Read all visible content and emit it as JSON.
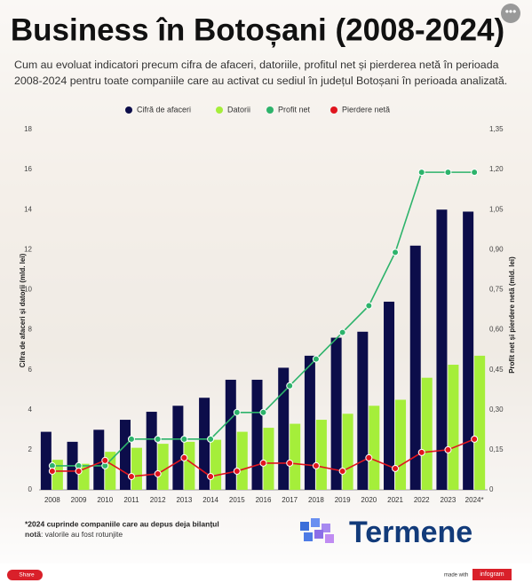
{
  "chart_data": {
    "type": "bar-line",
    "title": "Business în Botoșani (2008-2024)",
    "subtitle": "Cum au evoluat indicatori precum cifra de afaceri, datoriile, profitul net și pierderea netă în perioada 2008-2024 pentru toate companiile care au activat cu sediul în județul Botoșani în perioada analizată.",
    "categories": [
      "2008",
      "2009",
      "2010",
      "2011",
      "2012",
      "2013",
      "2014",
      "2015",
      "2016",
      "2017",
      "2018",
      "2019",
      "2020",
      "2021",
      "2022",
      "2023",
      "2024*"
    ],
    "series": [
      {
        "name": "Cifră de afaceri",
        "color": "#0c0d4a",
        "kind": "bar",
        "values": [
          2.9,
          2.4,
          3.0,
          3.5,
          3.9,
          4.2,
          4.6,
          5.5,
          5.5,
          6.1,
          6.7,
          7.6,
          7.9,
          9.4,
          12.2,
          14.0,
          13.9
        ]
      },
      {
        "name": "Datorii",
        "color": "#a5ee3a",
        "kind": "bar",
        "values": [
          1.5,
          1.3,
          1.9,
          2.1,
          2.3,
          2.4,
          2.5,
          2.9,
          3.1,
          3.3,
          3.5,
          3.8,
          4.2,
          4.5,
          5.6,
          6.25,
          6.7
        ]
      },
      {
        "name": "Profit net",
        "color": "#2db36b",
        "kind": "line",
        "axis": "y2",
        "values": [
          0.09,
          0.09,
          0.09,
          0.19,
          0.19,
          0.19,
          0.19,
          0.29,
          0.29,
          0.39,
          0.49,
          0.59,
          0.69,
          0.89,
          1.19,
          1.19,
          1.19
        ]
      },
      {
        "name": "Pierdere netă",
        "color": "#e0151e",
        "kind": "line",
        "axis": "y2",
        "values": [
          0.07,
          0.07,
          0.11,
          0.05,
          0.06,
          0.12,
          0.05,
          0.07,
          0.1,
          0.1,
          0.09,
          0.07,
          0.12,
          0.08,
          0.14,
          0.15,
          0.19
        ]
      }
    ],
    "ylabel": "Cifra de afaceri și datorii (mld. lei)",
    "y2label": "Profit net și pierdere netă (mld. lei)",
    "ylim": [
      0,
      18
    ],
    "yticks": [
      0,
      2,
      4,
      6,
      8,
      10,
      12,
      14,
      16,
      18
    ],
    "y2lim": [
      0,
      1.35
    ],
    "y2ticks": [
      0,
      {
        "value": 0.15,
        "label": "0,15"
      },
      {
        "value": 0.3,
        "label": "0,30"
      },
      {
        "value": 0.45,
        "label": "0,45"
      },
      {
        "value": 0.6,
        "label": "0,60"
      },
      {
        "value": 0.75,
        "label": "0,75"
      },
      {
        "value": 0.9,
        "label": "0,90"
      },
      {
        "value": 1.05,
        "label": "1,05"
      },
      {
        "value": 1.2,
        "label": "1,20"
      },
      {
        "value": 1.35,
        "label": "1,35"
      }
    ],
    "grid": false,
    "legend": "top"
  },
  "notes": {
    "footnote": "*2024 cuprinde companiile care au depus deja bilanțul",
    "note_label": "notă",
    "note_text": ": valorile au fost rotunjite"
  },
  "branding": {
    "logo": "Termene",
    "share": "Share",
    "made_with": "made with",
    "infogram": "infogram"
  }
}
